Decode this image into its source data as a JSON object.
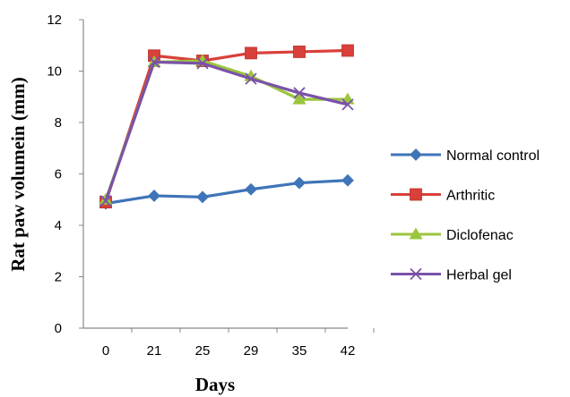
{
  "chart_data": {
    "type": "line",
    "title": "",
    "xlabel": "Days",
    "ylabel": "Rat paw volumein  (mm)",
    "categories": [
      "0",
      "21",
      "25",
      "29",
      "35",
      "42"
    ],
    "ylim": [
      0,
      12
    ],
    "yticks": [
      0,
      2,
      4,
      6,
      8,
      10,
      12
    ],
    "ytick_labels": [
      "0",
      "2",
      "4",
      "6",
      "8",
      "10",
      "12"
    ],
    "grid": false,
    "legend_position": "right",
    "series": [
      {
        "name": "Normal control",
        "color": "#3f74b8",
        "marker": "diamond",
        "values": [
          4.85,
          5.15,
          5.1,
          5.4,
          5.65,
          5.75
        ]
      },
      {
        "name": "Arthritic",
        "color": "#d9403a",
        "marker": "square",
        "values": [
          4.9,
          10.6,
          10.4,
          10.7,
          10.75,
          10.8
        ]
      },
      {
        "name": "Diclofenac",
        "color": "#9bc63c",
        "marker": "triangle",
        "values": [
          5.0,
          10.35,
          10.4,
          9.8,
          8.9,
          8.9
        ]
      },
      {
        "name": "Herbal gel",
        "color": "#7a52a8",
        "marker": "x",
        "values": [
          4.95,
          10.35,
          10.3,
          9.7,
          9.15,
          8.7
        ]
      }
    ]
  }
}
